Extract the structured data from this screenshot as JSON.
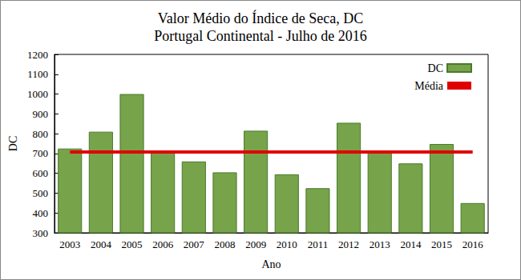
{
  "chart_data": {
    "type": "bar",
    "title": "Valor Médio do Índice de Seca, DC",
    "subtitle": "Portugal Continental - Julho de 2016",
    "x_label": "Ano",
    "y_label": "DC",
    "categories": [
      "2003",
      "2004",
      "2005",
      "2006",
      "2007",
      "2008",
      "2009",
      "2010",
      "2011",
      "2012",
      "2013",
      "2014",
      "2015",
      "2016"
    ],
    "series": [
      {
        "name": "DC",
        "type": "bar",
        "color": "#77a34a",
        "values": [
          725,
          810,
          1000,
          705,
          660,
          605,
          815,
          595,
          525,
          855,
          705,
          650,
          748,
          450
        ]
      },
      {
        "name": "Média",
        "type": "line",
        "color": "#e00000",
        "values": [
          708,
          708,
          708,
          708,
          708,
          708,
          708,
          708,
          708,
          708,
          708,
          708,
          708,
          708
        ]
      }
    ],
    "ylim": [
      300,
      1200
    ],
    "yticks": [
      300,
      400,
      500,
      600,
      700,
      800,
      900,
      1000,
      1100,
      1200
    ],
    "grid": false,
    "legend": "upper right"
  }
}
